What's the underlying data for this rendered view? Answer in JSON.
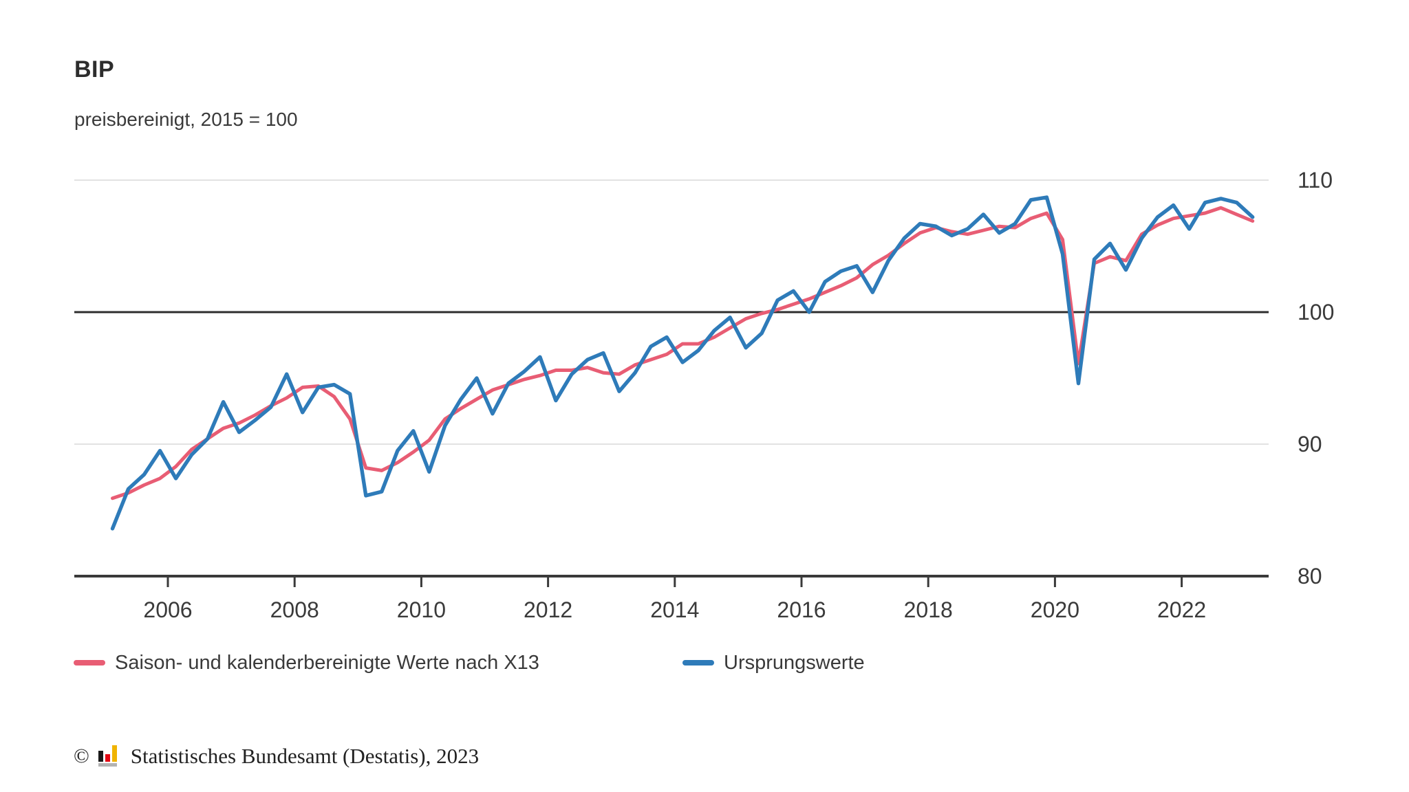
{
  "header": {
    "title": "BIP",
    "subtitle": "preisbereinigt, 2015 = 100"
  },
  "chart_data": {
    "type": "line",
    "title": "BIP",
    "subtitle": "preisbereinigt, 2015 = 100",
    "frequency": "quarterly",
    "x_start": "2005-Q1",
    "x_end": "2023-Q1",
    "ylim": [
      80,
      113
    ],
    "y_ticks": [
      110,
      100,
      90,
      80
    ],
    "baseline_value": 100,
    "grid": "horizontal-only",
    "legend_position": "bottom-left",
    "x_tick_labels": [
      "2006",
      "2008",
      "2010",
      "2012",
      "2014",
      "2016",
      "2018",
      "2020",
      "2022"
    ],
    "axis_color": "#3a3a3a",
    "gridline_color": "#d8d8d8",
    "baseline_color": "#2e2e2e",
    "series": [
      {
        "name": "Saison- und kalenderbereinigte Werte nach X13",
        "color": "#e85d74",
        "values": [
          85.9,
          86.3,
          86.9,
          87.4,
          88.3,
          89.6,
          90.4,
          91.2,
          91.6,
          92.2,
          92.9,
          93.5,
          94.3,
          94.4,
          93.6,
          91.9,
          88.2,
          88.0,
          88.6,
          89.4,
          90.3,
          91.9,
          92.7,
          93.4,
          94.1,
          94.5,
          94.9,
          95.2,
          95.6,
          95.6,
          95.8,
          95.4,
          95.3,
          96.0,
          96.4,
          96.8,
          97.6,
          97.6,
          98.1,
          98.8,
          99.5,
          99.9,
          100.2,
          100.6,
          101.0,
          101.5,
          102.0,
          102.6,
          103.6,
          104.3,
          105.2,
          106.0,
          106.4,
          106.1,
          105.9,
          106.2,
          106.5,
          106.4,
          107.1,
          107.5,
          105.5,
          96.1,
          103.7,
          104.2,
          103.9,
          105.9,
          106.6,
          107.1,
          107.3,
          107.5,
          107.9,
          107.4,
          106.9
        ]
      },
      {
        "name": "Ursprungswerte",
        "color": "#2e7bb9",
        "values": [
          83.6,
          86.6,
          87.7,
          89.5,
          87.4,
          89.2,
          90.4,
          93.2,
          90.9,
          91.8,
          92.8,
          95.3,
          92.4,
          94.3,
          94.5,
          93.8,
          86.1,
          86.4,
          89.5,
          91.0,
          87.9,
          91.4,
          93.4,
          95.0,
          92.3,
          94.6,
          95.5,
          96.6,
          93.3,
          95.3,
          96.4,
          96.9,
          94.0,
          95.4,
          97.4,
          98.1,
          96.2,
          97.1,
          98.6,
          99.6,
          97.3,
          98.4,
          100.9,
          101.6,
          100.0,
          102.3,
          103.1,
          103.5,
          101.5,
          103.9,
          105.6,
          106.7,
          106.5,
          105.8,
          106.3,
          107.4,
          106.0,
          106.7,
          108.5,
          108.7,
          104.4,
          94.6,
          104.0,
          105.2,
          103.2,
          105.6,
          107.2,
          108.1,
          106.3,
          108.3,
          108.6,
          108.3,
          107.2
        ]
      }
    ]
  },
  "legend": {
    "items": [
      {
        "label": "Saison- und kalenderbereinigte Werte nach X13",
        "color": "#e85d74"
      },
      {
        "label": "Ursprungswerte",
        "color": "#2e7bb9"
      }
    ]
  },
  "footer": {
    "copyright": "©",
    "logo": "destatis-bars-logo",
    "source": "Statistisches Bundesamt (Destatis), 2023"
  }
}
